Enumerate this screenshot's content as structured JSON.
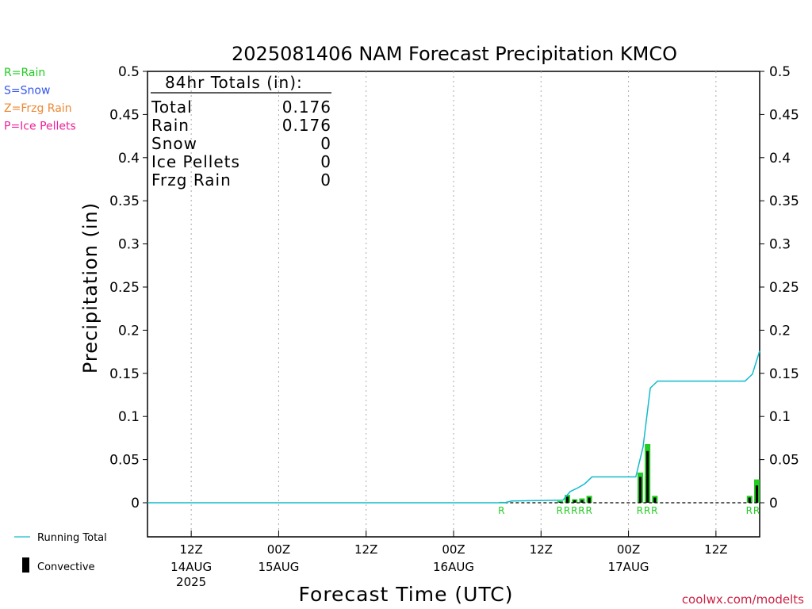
{
  "chart_data": {
    "type": "bar",
    "title": "2025081406 NAM Forecast Precipitation KMCO",
    "ylabel": "Precipitation (in)",
    "xlabel": "Forecast Time (UTC)",
    "ylim": [
      0,
      0.5
    ],
    "yticks": [
      "0",
      "0.05",
      "0.1",
      "0.15",
      "0.2",
      "0.25",
      "0.3",
      "0.35",
      "0.4",
      "0.45",
      "0.5"
    ],
    "x_hours_range": [
      0,
      84
    ],
    "xticks": [
      {
        "hour": 6,
        "line1": "12Z",
        "line2": "14AUG",
        "line3": "2025"
      },
      {
        "hour": 18,
        "line1": "00Z",
        "line2": "15AUG",
        "line3": ""
      },
      {
        "hour": 30,
        "line1": "12Z",
        "line2": "",
        "line3": ""
      },
      {
        "hour": 42,
        "line1": "00Z",
        "line2": "16AUG",
        "line3": ""
      },
      {
        "hour": 54,
        "line1": "12Z",
        "line2": "",
        "line3": ""
      },
      {
        "hour": 66,
        "line1": "00Z",
        "line2": "17AUG",
        "line3": ""
      },
      {
        "hour": 78,
        "line1": "12Z",
        "line2": "",
        "line3": ""
      }
    ],
    "legend": [
      {
        "label": "R=Rain",
        "color": "#22cc22"
      },
      {
        "label": "S=Snow",
        "color": "#3355ee"
      },
      {
        "label": "Z=Frzg Rain",
        "color": "#ee8833"
      },
      {
        "label": "P=Ice Pellets",
        "color": "#ee2299"
      }
    ],
    "totals": {
      "heading": "84hr Totals (in):",
      "rows": [
        {
          "label": "Total",
          "value": "0.176"
        },
        {
          "label": "Rain",
          "value": "0.176"
        },
        {
          "label": "Snow",
          "value": "0"
        },
        {
          "label": "Ice Pellets",
          "value": "0"
        },
        {
          "label": "Frzg Rain",
          "value": "0"
        }
      ]
    },
    "bars": [
      {
        "hour": 49,
        "total": 0.001,
        "convective": 0.0
      },
      {
        "hour": 57,
        "total": 0.002,
        "convective": 0.001
      },
      {
        "hour": 58,
        "total": 0.009,
        "convective": 0.007
      },
      {
        "hour": 59,
        "total": 0.004,
        "convective": 0.003
      },
      {
        "hour": 60,
        "total": 0.005,
        "convective": 0.003
      },
      {
        "hour": 61,
        "total": 0.008,
        "convective": 0.006
      },
      {
        "hour": 68,
        "total": 0.035,
        "convective": 0.03
      },
      {
        "hour": 69,
        "total": 0.068,
        "convective": 0.06
      },
      {
        "hour": 70,
        "total": 0.008,
        "convective": 0.006
      },
      {
        "hour": 83,
        "total": 0.008,
        "convective": 0.006
      },
      {
        "hour": 84,
        "total": 0.027,
        "convective": 0.02
      }
    ],
    "running_total": {
      "name": "Running Total",
      "color": "#11bbcc",
      "points": [
        [
          0,
          0
        ],
        [
          49,
          0
        ],
        [
          50,
          0.002
        ],
        [
          57,
          0.003
        ],
        [
          58,
          0.013
        ],
        [
          59,
          0.017
        ],
        [
          60,
          0.022
        ],
        [
          61,
          0.03
        ],
        [
          67,
          0.03
        ],
        [
          68,
          0.065
        ],
        [
          69,
          0.133
        ],
        [
          70,
          0.141
        ],
        [
          82,
          0.141
        ],
        [
          83,
          0.149
        ],
        [
          84,
          0.176
        ]
      ]
    },
    "precip_types": [
      {
        "hour": 49,
        "label": "R"
      },
      {
        "hour": 57,
        "label": "R"
      },
      {
        "hour": 58,
        "label": "R"
      },
      {
        "hour": 59,
        "label": "R"
      },
      {
        "hour": 60,
        "label": "R"
      },
      {
        "hour": 61,
        "label": "R"
      },
      {
        "hour": 68,
        "label": "R"
      },
      {
        "hour": 69,
        "label": "R"
      },
      {
        "hour": 70,
        "label": "R"
      },
      {
        "hour": 83,
        "label": "R"
      },
      {
        "hour": 84,
        "label": "R"
      }
    ],
    "bottom_legend": {
      "running_total_label": "Running Total",
      "convective_label": "Convective"
    },
    "credit": "coolwx.com/modelts",
    "colors": {
      "rain_bar": "#22cc22",
      "convective_bar": "#000000",
      "running_total": "#11bbcc",
      "credit": "#cc2244",
      "grid": "#aaaaaa"
    }
  }
}
